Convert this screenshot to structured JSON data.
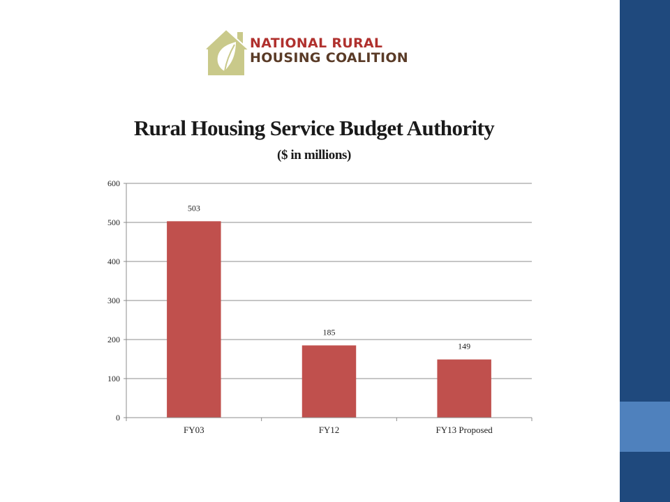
{
  "logo": {
    "line1": "NATIONAL RURAL",
    "line2": "HOUSING COALITION",
    "colors": {
      "text_line1": "#b0312e",
      "text_line2": "#5a3b27",
      "house": "#c9c98a",
      "leaf": "#ffffff"
    }
  },
  "sidebar": {
    "colors": {
      "band_top": "#1f497d",
      "band_mid": "#4f81bd",
      "band_bot": "#1f497d"
    }
  },
  "chart_data": {
    "type": "bar",
    "title": "Rural Housing Service Budget Authority",
    "subtitle": "($ in millions)",
    "xlabel": "",
    "ylabel": "",
    "categories": [
      "FY03",
      "FY12",
      "FY13 Proposed"
    ],
    "values": [
      503,
      185,
      149
    ],
    "data_labels": [
      "503",
      "185",
      "149"
    ],
    "ylim": [
      0,
      600
    ],
    "yticks": [
      0,
      100,
      200,
      300,
      400,
      500,
      600
    ],
    "ytick_labels": [
      "0",
      "100",
      "200",
      "300",
      "400",
      "500",
      "600"
    ],
    "grid": true,
    "legend": "none",
    "bar_color": "#c0504d"
  }
}
